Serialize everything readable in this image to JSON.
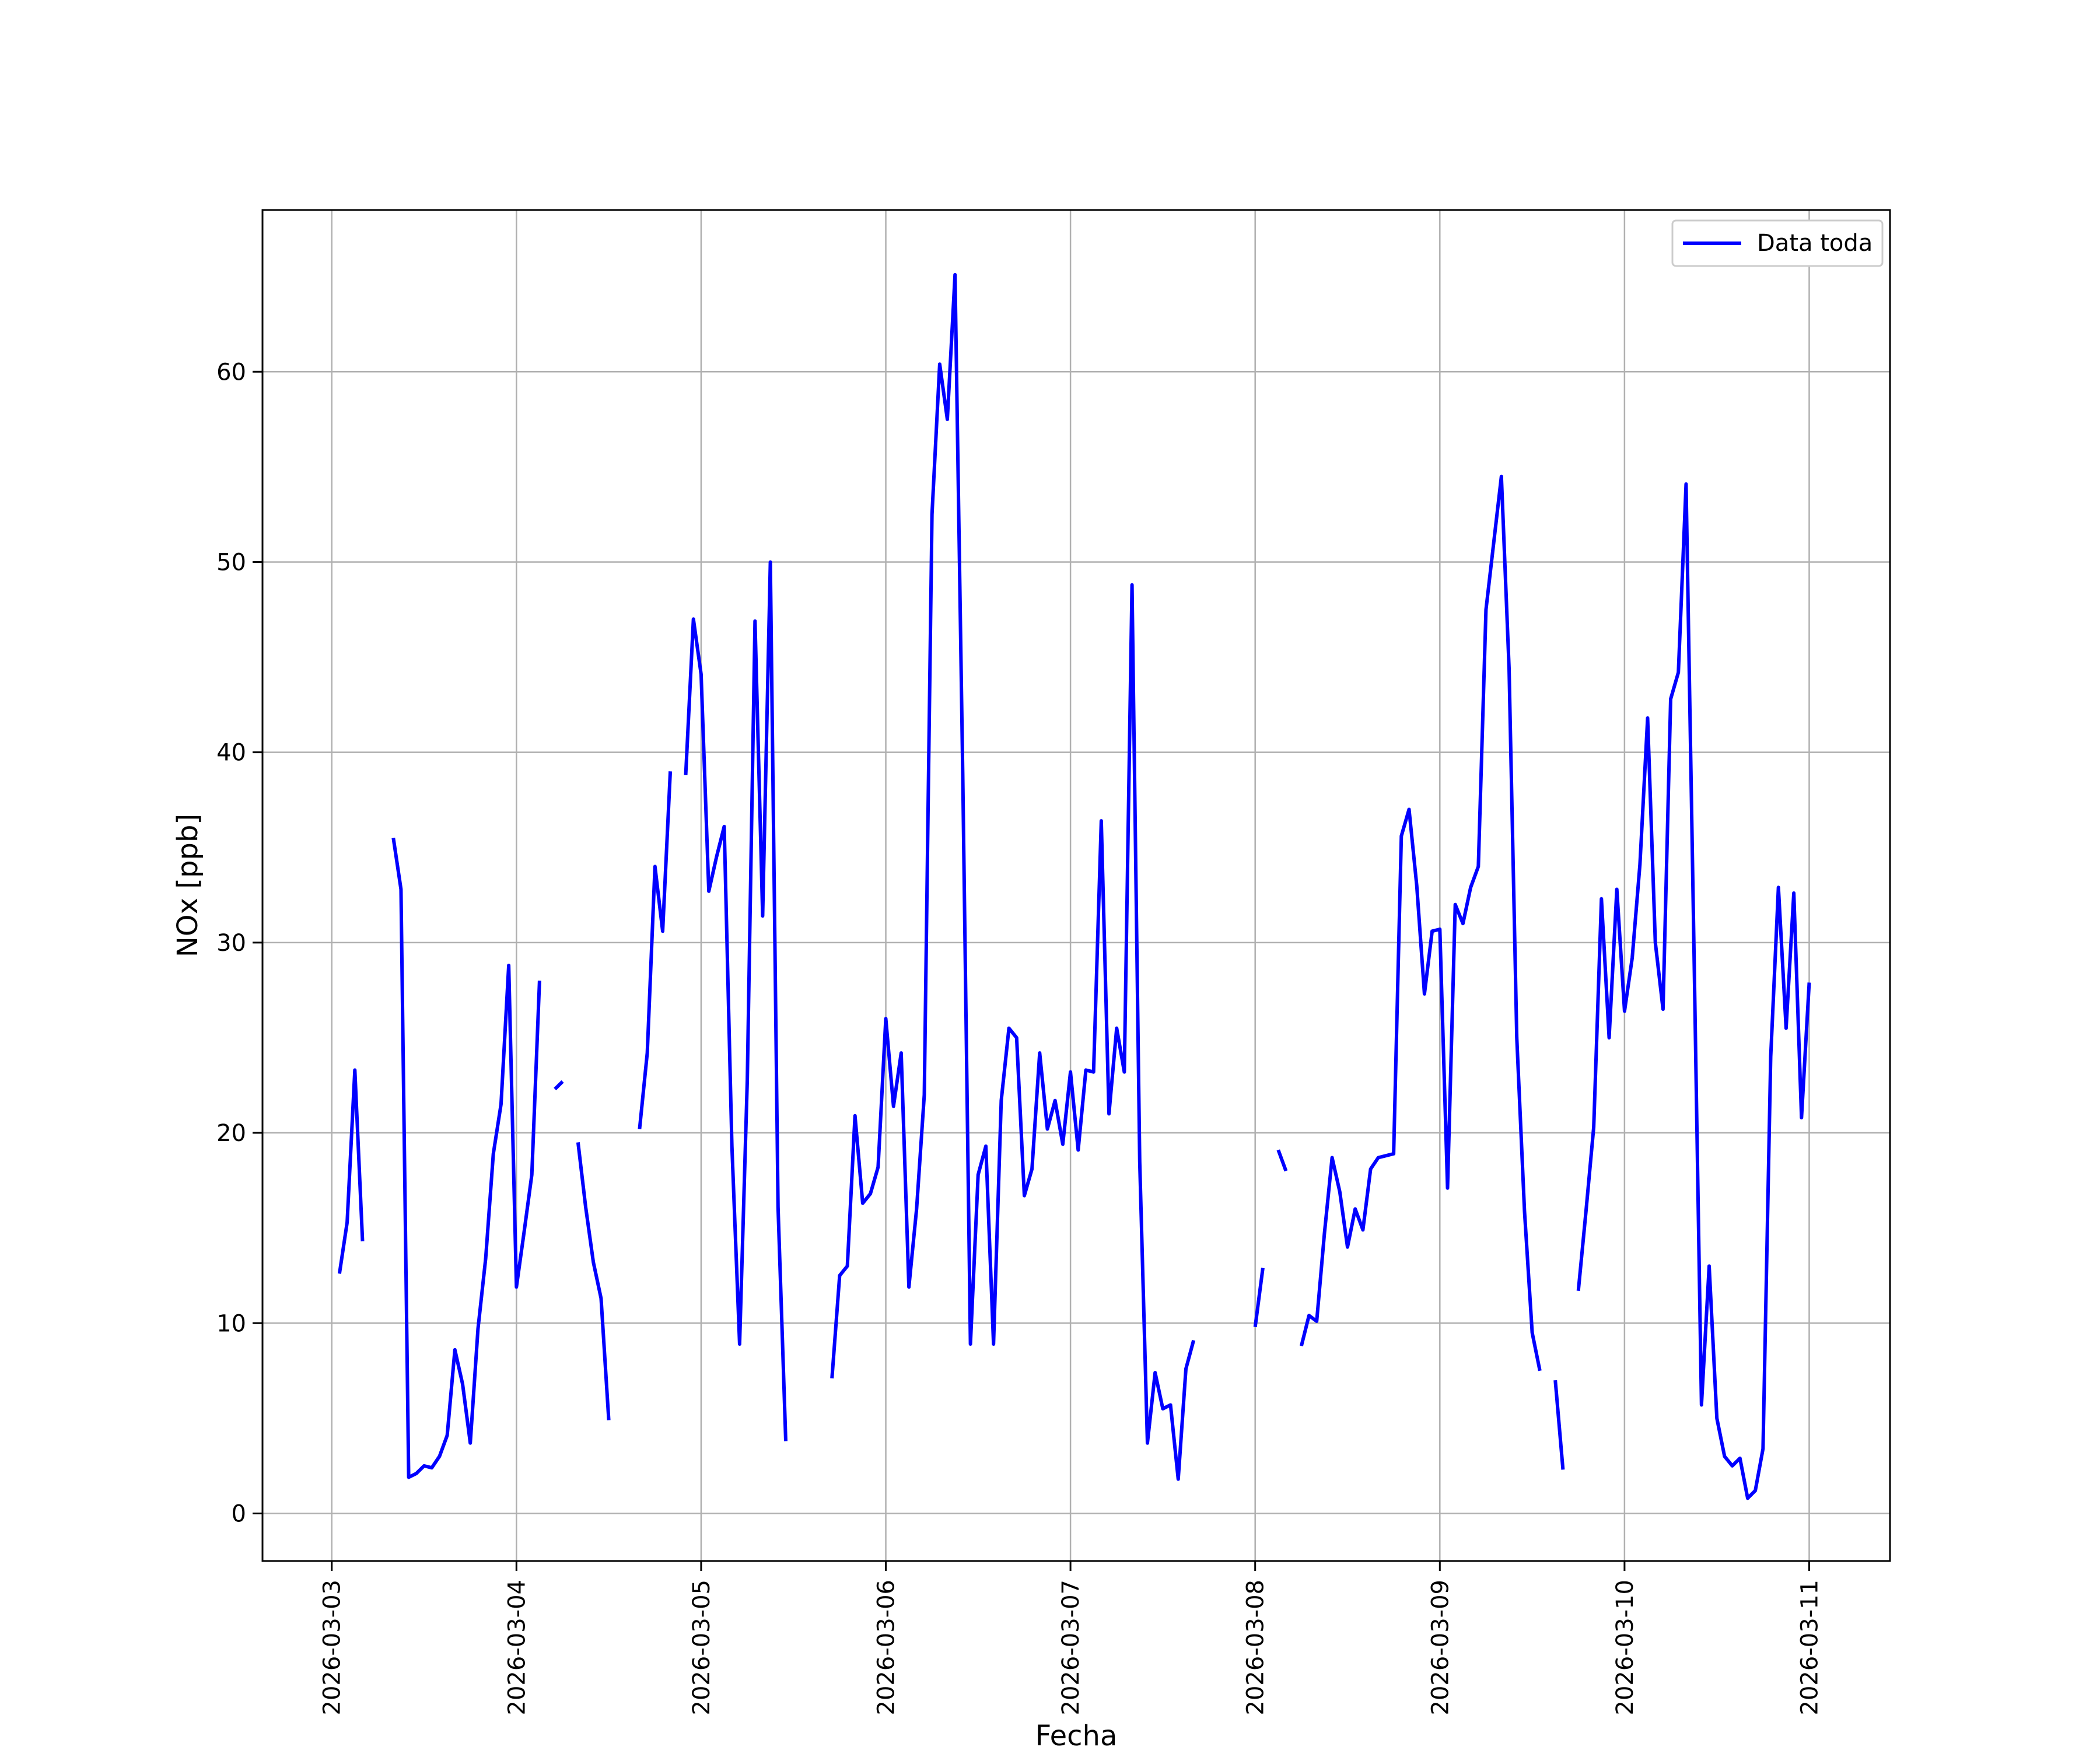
{
  "chart_data": {
    "type": "line",
    "xlabel": "Fecha",
    "ylabel": "NOx [ppb]",
    "ylim": [
      -2.5,
      68.5
    ],
    "xlim": [
      "2026-03-02T15:00",
      "2026-03-11T10:30"
    ],
    "yticks": [
      0,
      10,
      20,
      30,
      40,
      50,
      60
    ],
    "xticks": [
      "2026-03-03",
      "2026-03-04",
      "2026-03-05",
      "2026-03-06",
      "2026-03-07",
      "2026-03-08",
      "2026-03-09",
      "2026-03-10",
      "2026-03-11"
    ],
    "grid": true,
    "legend": {
      "position": "top-right",
      "entries": [
        "Data toda"
      ]
    },
    "colors": {
      "series": "#0000ff",
      "grid": "#b0b0b0",
      "axes": "#000000"
    },
    "series": [
      {
        "name": "Data toda",
        "segments": [
          [
            [
              "2026-03-03T01:00",
              12.6
            ],
            [
              "2026-03-03T02:00",
              15.3
            ],
            [
              "2026-03-03T03:00",
              23.3
            ],
            [
              "2026-03-03T04:00",
              14.3
            ]
          ],
          [
            [
              "2026-03-03T08:00",
              35.5
            ],
            [
              "2026-03-03T09:00",
              32.8
            ],
            [
              "2026-03-03T10:00",
              1.9
            ],
            [
              "2026-03-03T11:00",
              2.1
            ],
            [
              "2026-03-03T12:00",
              2.5
            ],
            [
              "2026-03-03T13:00",
              2.4
            ],
            [
              "2026-03-03T14:00",
              3.0
            ],
            [
              "2026-03-03T15:00",
              4.1
            ],
            [
              "2026-03-03T16:00",
              8.6
            ],
            [
              "2026-03-03T17:00",
              6.8
            ],
            [
              "2026-03-03T18:00",
              3.7
            ],
            [
              "2026-03-03T19:00",
              9.7
            ],
            [
              "2026-03-03T20:00",
              13.4
            ],
            [
              "2026-03-03T21:00",
              18.9
            ],
            [
              "2026-03-03T22:00",
              21.5
            ],
            [
              "2026-03-03T23:00",
              28.8
            ],
            [
              "2026-03-04T00:00",
              11.9
            ],
            [
              "2026-03-04T01:00",
              14.8
            ],
            [
              "2026-03-04T02:00",
              17.8
            ],
            [
              "2026-03-04T03:00",
              28.0
            ]
          ],
          [
            [
              "2026-03-04T05:00",
              22.3
            ],
            [
              "2026-03-04T06:00",
              22.7
            ]
          ],
          [
            [
              "2026-03-04T08:00",
              19.5
            ],
            [
              "2026-03-04T09:00",
              16.1
            ],
            [
              "2026-03-04T10:00",
              13.2
            ],
            [
              "2026-03-04T11:00",
              11.3
            ],
            [
              "2026-03-04T12:00",
              4.9
            ]
          ],
          [
            [
              "2026-03-04T16:00",
              20.2
            ],
            [
              "2026-03-04T17:00",
              24.2
            ],
            [
              "2026-03-04T18:00",
              34.0
            ],
            [
              "2026-03-04T19:00",
              30.6
            ],
            [
              "2026-03-04T20:00",
              39.0
            ]
          ],
          [
            [
              "2026-03-04T22:00",
              38.8
            ],
            [
              "2026-03-04T23:00",
              47.0
            ],
            [
              "2026-03-05T00:00",
              44.1
            ],
            [
              "2026-03-05T01:00",
              32.7
            ],
            [
              "2026-03-05T02:00",
              34.5
            ],
            [
              "2026-03-05T03:00",
              36.1
            ],
            [
              "2026-03-05T04:00",
              19.3
            ],
            [
              "2026-03-05T05:00",
              8.9
            ],
            [
              "2026-03-05T06:00",
              22.8
            ],
            [
              "2026-03-05T07:00",
              46.9
            ],
            [
              "2026-03-05T08:00",
              31.4
            ],
            [
              "2026-03-05T09:00",
              50.0
            ],
            [
              "2026-03-05T10:00",
              16.1
            ],
            [
              "2026-03-05T11:00",
              3.8
            ]
          ],
          [
            [
              "2026-03-05T17:00",
              7.1
            ],
            [
              "2026-03-05T18:00",
              12.5
            ],
            [
              "2026-03-05T19:00",
              13.0
            ],
            [
              "2026-03-05T20:00",
              20.9
            ],
            [
              "2026-03-05T21:00",
              16.3
            ],
            [
              "2026-03-05T22:00",
              16.8
            ],
            [
              "2026-03-05T23:00",
              18.2
            ],
            [
              "2026-03-06T00:00",
              26.0
            ],
            [
              "2026-03-06T01:00",
              21.4
            ],
            [
              "2026-03-06T02:00",
              24.2
            ],
            [
              "2026-03-06T03:00",
              11.9
            ],
            [
              "2026-03-06T04:00",
              16.0
            ],
            [
              "2026-03-06T05:00",
              22.0
            ],
            [
              "2026-03-06T06:00",
              52.5
            ],
            [
              "2026-03-06T07:00",
              60.4
            ],
            [
              "2026-03-06T08:00",
              57.5
            ],
            [
              "2026-03-06T09:00",
              65.1
            ],
            [
              "2026-03-06T10:00",
              38.9
            ],
            [
              "2026-03-06T11:00",
              8.9
            ],
            [
              "2026-03-06T12:00",
              17.8
            ],
            [
              "2026-03-06T13:00",
              19.3
            ],
            [
              "2026-03-06T14:00",
              8.9
            ],
            [
              "2026-03-06T15:00",
              21.7
            ],
            [
              "2026-03-06T16:00",
              25.5
            ],
            [
              "2026-03-06T17:00",
              25.0
            ],
            [
              "2026-03-06T18:00",
              16.7
            ],
            [
              "2026-03-06T19:00",
              18.1
            ],
            [
              "2026-03-06T20:00",
              24.2
            ],
            [
              "2026-03-06T21:00",
              20.2
            ],
            [
              "2026-03-06T22:00",
              21.7
            ],
            [
              "2026-03-06T23:00",
              19.4
            ],
            [
              "2026-03-07T00:00",
              23.2
            ],
            [
              "2026-03-07T01:00",
              19.1
            ],
            [
              "2026-03-07T02:00",
              23.3
            ],
            [
              "2026-03-07T03:00",
              23.2
            ],
            [
              "2026-03-07T04:00",
              36.4
            ],
            [
              "2026-03-07T05:00",
              21.0
            ],
            [
              "2026-03-07T06:00",
              25.5
            ],
            [
              "2026-03-07T07:00",
              23.2
            ],
            [
              "2026-03-07T08:00",
              48.8
            ],
            [
              "2026-03-07T09:00",
              18.5
            ],
            [
              "2026-03-07T10:00",
              3.7
            ],
            [
              "2026-03-07T11:00",
              7.4
            ],
            [
              "2026-03-07T12:00",
              5.5
            ],
            [
              "2026-03-07T13:00",
              5.7
            ],
            [
              "2026-03-07T14:00",
              1.8
            ],
            [
              "2026-03-07T15:00",
              7.6
            ],
            [
              "2026-03-07T16:00",
              9.1
            ]
          ],
          [
            [
              "2026-03-08T00:00",
              9.8
            ],
            [
              "2026-03-08T01:00",
              12.9
            ]
          ],
          [
            [
              "2026-03-08T03:00",
              19.1
            ],
            [
              "2026-03-08T04:00",
              18.0
            ]
          ],
          [
            [
              "2026-03-08T06:00",
              8.8
            ],
            [
              "2026-03-08T07:00",
              10.4
            ],
            [
              "2026-03-08T08:00",
              10.1
            ],
            [
              "2026-03-08T09:00",
              14.7
            ],
            [
              "2026-03-08T10:00",
              18.7
            ],
            [
              "2026-03-08T11:00",
              16.9
            ],
            [
              "2026-03-08T12:00",
              14.0
            ],
            [
              "2026-03-08T13:00",
              16.0
            ],
            [
              "2026-03-08T14:00",
              14.9
            ],
            [
              "2026-03-08T15:00",
              18.1
            ],
            [
              "2026-03-08T16:00",
              18.7
            ],
            [
              "2026-03-08T17:00",
              18.8
            ],
            [
              "2026-03-08T18:00",
              18.9
            ],
            [
              "2026-03-08T19:00",
              35.6
            ],
            [
              "2026-03-08T20:00",
              37.0
            ],
            [
              "2026-03-08T21:00",
              33.0
            ],
            [
              "2026-03-08T22:00",
              27.3
            ],
            [
              "2026-03-08T23:00",
              30.6
            ],
            [
              "2026-03-09T00:00",
              30.7
            ],
            [
              "2026-03-09T01:00",
              17.1
            ],
            [
              "2026-03-09T02:00",
              32.0
            ],
            [
              "2026-03-09T03:00",
              31.0
            ],
            [
              "2026-03-09T04:00",
              32.9
            ],
            [
              "2026-03-09T05:00",
              34.0
            ],
            [
              "2026-03-09T06:00",
              47.5
            ],
            [
              "2026-03-09T07:00",
              51.0
            ],
            [
              "2026-03-09T08:00",
              54.5
            ],
            [
              "2026-03-09T09:00",
              44.4
            ],
            [
              "2026-03-09T10:00",
              25.0
            ],
            [
              "2026-03-09T11:00",
              15.9
            ],
            [
              "2026-03-09T12:00",
              9.5
            ],
            [
              "2026-03-09T13:00",
              7.5
            ]
          ],
          [
            [
              "2026-03-09T15:00",
              7.0
            ],
            [
              "2026-03-09T16:00",
              2.3
            ]
          ],
          [
            [
              "2026-03-09T18:00",
              11.7
            ],
            [
              "2026-03-09T19:00",
              15.9
            ],
            [
              "2026-03-09T20:00",
              20.3
            ],
            [
              "2026-03-09T21:00",
              32.3
            ],
            [
              "2026-03-09T22:00",
              25.0
            ],
            [
              "2026-03-09T23:00",
              32.8
            ],
            [
              "2026-03-10T00:00",
              26.4
            ],
            [
              "2026-03-10T01:00",
              29.2
            ],
            [
              "2026-03-10T02:00",
              34.1
            ],
            [
              "2026-03-10T03:00",
              41.8
            ],
            [
              "2026-03-10T04:00",
              30.0
            ],
            [
              "2026-03-10T05:00",
              26.5
            ],
            [
              "2026-03-10T06:00",
              42.8
            ],
            [
              "2026-03-10T07:00",
              44.2
            ],
            [
              "2026-03-10T08:00",
              54.1
            ],
            [
              "2026-03-10T09:00",
              30.3
            ],
            [
              "2026-03-10T10:00",
              5.7
            ],
            [
              "2026-03-10T11:00",
              13.0
            ],
            [
              "2026-03-10T12:00",
              5.0
            ],
            [
              "2026-03-10T13:00",
              3.0
            ],
            [
              "2026-03-10T14:00",
              2.5
            ],
            [
              "2026-03-10T15:00",
              2.9
            ],
            [
              "2026-03-10T16:00",
              0.8
            ],
            [
              "2026-03-10T17:00",
              1.2
            ],
            [
              "2026-03-10T18:00",
              3.4
            ],
            [
              "2026-03-10T19:00",
              24.0
            ],
            [
              "2026-03-10T20:00",
              32.9
            ],
            [
              "2026-03-10T21:00",
              25.5
            ],
            [
              "2026-03-10T22:00",
              32.6
            ],
            [
              "2026-03-10T23:00",
              20.8
            ],
            [
              "2026-03-11T00:00",
              27.9
            ]
          ]
        ]
      }
    ]
  }
}
